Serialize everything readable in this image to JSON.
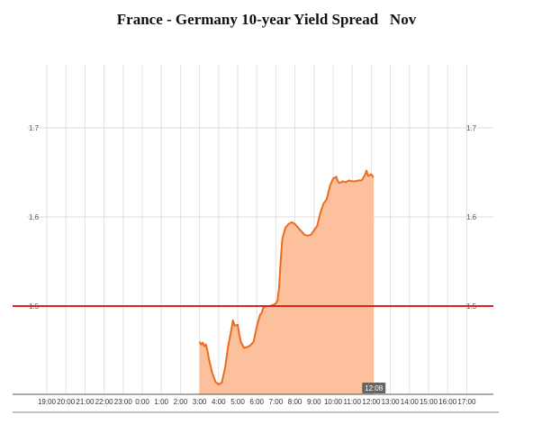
{
  "chart_data": {
    "type": "area",
    "title": "France - Germany 10-year Yield Spread   Nov",
    "xlabel": "",
    "ylabel": "",
    "x_tick_labels": [
      "19:00",
      "20:00",
      "21:00",
      "22:00",
      "23:00",
      "0:00",
      "1:00",
      "2:00",
      "3:00",
      "4:00",
      "5:00",
      "6:00",
      "7:00",
      "8:00",
      "9:00",
      "10:00",
      "11:00",
      "12:00",
      "13:00",
      "14:00",
      "15:00",
      "16:00",
      "17:00"
    ],
    "y_tick_labels": [
      "1.7",
      "1.6",
      "1.5"
    ],
    "ylim": [
      1.39,
      1.77
    ],
    "reference_line": {
      "value": 1.5,
      "color": "#dd2222"
    },
    "current_time_label": "12:08",
    "series": [
      {
        "color": "#ee6a1c",
        "fill": "#fcc09c",
        "points": [
          [
            "3:00",
            1.46
          ],
          [
            "3:05",
            1.457
          ],
          [
            "3:10",
            1.459
          ],
          [
            "3:15",
            1.455
          ],
          [
            "3:20",
            1.457
          ],
          [
            "3:25",
            1.45
          ],
          [
            "3:30",
            1.44
          ],
          [
            "3:40",
            1.425
          ],
          [
            "3:50",
            1.415
          ],
          [
            "4:00",
            1.412
          ],
          [
            "4:10",
            1.414
          ],
          [
            "4:20",
            1.43
          ],
          [
            "4:30",
            1.455
          ],
          [
            "4:40",
            1.473
          ],
          [
            "4:45",
            1.484
          ],
          [
            "4:50",
            1.478
          ],
          [
            "5:00",
            1.479
          ],
          [
            "5:05",
            1.468
          ],
          [
            "5:10",
            1.46
          ],
          [
            "5:20",
            1.453
          ],
          [
            "5:30",
            1.454
          ],
          [
            "5:40",
            1.456
          ],
          [
            "5:50",
            1.46
          ],
          [
            "6:00",
            1.477
          ],
          [
            "6:10",
            1.49
          ],
          [
            "6:15",
            1.492
          ],
          [
            "6:20",
            1.498
          ],
          [
            "6:30",
            1.5
          ],
          [
            "6:40",
            1.5
          ],
          [
            "6:50",
            1.501
          ],
          [
            "7:00",
            1.503
          ],
          [
            "7:05",
            1.506
          ],
          [
            "7:10",
            1.52
          ],
          [
            "7:15",
            1.55
          ],
          [
            "7:20",
            1.575
          ],
          [
            "7:30",
            1.588
          ],
          [
            "7:40",
            1.592
          ],
          [
            "7:50",
            1.594
          ],
          [
            "8:00",
            1.592
          ],
          [
            "8:10",
            1.588
          ],
          [
            "8:20",
            1.584
          ],
          [
            "8:30",
            1.58
          ],
          [
            "8:40",
            1.579
          ],
          [
            "8:50",
            1.58
          ],
          [
            "9:00",
            1.585
          ],
          [
            "9:10",
            1.59
          ],
          [
            "9:20",
            1.605
          ],
          [
            "9:30",
            1.615
          ],
          [
            "9:40",
            1.62
          ],
          [
            "9:50",
            1.635
          ],
          [
            "10:00",
            1.643
          ],
          [
            "10:10",
            1.645
          ],
          [
            "10:15",
            1.64
          ],
          [
            "10:20",
            1.638
          ],
          [
            "10:30",
            1.64
          ],
          [
            "10:40",
            1.639
          ],
          [
            "10:50",
            1.641
          ],
          [
            "11:00",
            1.64
          ],
          [
            "11:10",
            1.64
          ],
          [
            "11:20",
            1.641
          ],
          [
            "11:30",
            1.641
          ],
          [
            "11:40",
            1.647
          ],
          [
            "11:45",
            1.652
          ],
          [
            "11:50",
            1.646
          ],
          [
            "12:00",
            1.648
          ],
          [
            "12:05",
            1.645
          ],
          [
            "12:08",
            1.645
          ]
        ]
      }
    ]
  }
}
